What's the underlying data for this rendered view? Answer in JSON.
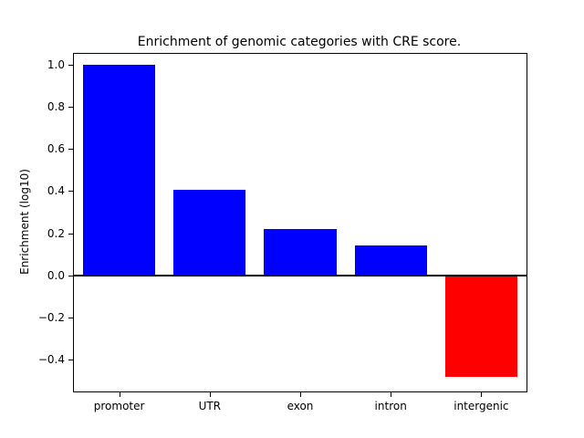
{
  "chart_data": {
    "type": "bar",
    "title": "Enrichment of genomic categories with CRE score.",
    "xlabel": "",
    "ylabel": "Enrichment (log10)",
    "categories": [
      "promoter",
      "UTR",
      "exon",
      "intron",
      "intergenic"
    ],
    "values": [
      1.0,
      0.405,
      0.22,
      0.14,
      -0.48
    ],
    "bar_colors": [
      "#0000ff",
      "#0000ff",
      "#0000ff",
      "#0000ff",
      "#ff0000"
    ],
    "ylim": [
      -0.55,
      1.05
    ],
    "yticks": [
      1.0,
      0.8,
      0.6,
      0.4,
      0.2,
      0.0,
      -0.2,
      -0.4
    ],
    "ytick_labels": [
      "1.0",
      "0.8",
      "0.6",
      "0.4",
      "0.2",
      "0.0",
      "−0.2",
      "−0.4"
    ],
    "grid": false,
    "legend": "none",
    "zero_line": true,
    "bar_width_frac": 0.8
  },
  "colors": {
    "background": "#ffffff",
    "axis": "#000000",
    "positive_bar": "#0000ff",
    "negative_bar": "#ff0000"
  }
}
